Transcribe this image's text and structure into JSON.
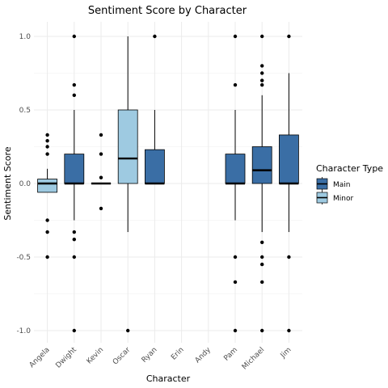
{
  "chart_data": {
    "type": "box",
    "title": "Sentiment Score by Character",
    "xlabel": "Character",
    "ylabel": "Sentiment Score",
    "ylim": [
      -1.1,
      1.1
    ],
    "yticks": [
      "-1.0",
      "-0.5",
      "0.0",
      "0.5",
      "1.0"
    ],
    "ytick_values": [
      -1.0,
      -0.5,
      0.0,
      0.5,
      1.0
    ],
    "categories": [
      "Angela",
      "Dwight",
      "Kevin",
      "Oscar",
      "Ryan",
      "Erin",
      "Andy",
      "Pam",
      "Michael",
      "Jim"
    ],
    "grid": true,
    "legend": {
      "title": "Character Type",
      "position": "right",
      "entries": [
        {
          "label": "Main",
          "color": "#3a6ea5"
        },
        {
          "label": "Minor",
          "color": "#9ecae1"
        }
      ]
    },
    "boxes": [
      {
        "category": "Angela",
        "type": "Minor",
        "q1": -0.06,
        "median": 0.0,
        "q3": 0.03,
        "whisker_low": -0.06,
        "whisker_high": 0.1,
        "outliers": [
          0.33,
          0.29,
          0.25,
          0.2,
          -0.25,
          -0.33,
          -0.5
        ]
      },
      {
        "category": "Dwight",
        "type": "Main",
        "q1": 0.0,
        "median": 0.0,
        "q3": 0.2,
        "whisker_low": -0.25,
        "whisker_high": 0.5,
        "outliers": [
          1.0,
          0.67,
          0.6,
          -0.33,
          -0.38,
          -0.5,
          -1.0
        ]
      },
      {
        "category": "Kevin",
        "type": "Main",
        "q1": 0.0,
        "median": 0.0,
        "q3": 0.0,
        "whisker_low": 0.0,
        "whisker_high": 0.0,
        "outliers": [
          0.33,
          0.2,
          0.04,
          -0.17
        ]
      },
      {
        "category": "Oscar",
        "type": "Minor",
        "q1": 0.0,
        "median": 0.17,
        "q3": 0.5,
        "whisker_low": -0.33,
        "whisker_high": 1.0,
        "outliers": [
          -1.0
        ]
      },
      {
        "category": "Ryan",
        "type": "Main",
        "q1": 0.0,
        "median": 0.0,
        "q3": 0.23,
        "whisker_low": 0.0,
        "whisker_high": 0.5,
        "outliers": [
          1.0
        ]
      },
      {
        "category": "Pam",
        "type": "Main",
        "q1": 0.0,
        "median": 0.0,
        "q3": 0.2,
        "whisker_low": -0.25,
        "whisker_high": 0.5,
        "outliers": [
          1.0,
          0.67,
          -0.5,
          -0.67,
          -1.0
        ]
      },
      {
        "category": "Michael",
        "type": "Main",
        "q1": 0.0,
        "median": 0.09,
        "q3": 0.25,
        "whisker_low": -0.33,
        "whisker_high": 0.6,
        "outliers": [
          1.0,
          0.8,
          0.75,
          0.7,
          0.67,
          -0.4,
          -0.5,
          -0.55,
          -0.67,
          -1.0
        ]
      },
      {
        "category": "Jim",
        "type": "Main",
        "q1": 0.0,
        "median": 0.0,
        "q3": 0.33,
        "whisker_low": -0.33,
        "whisker_high": 0.75,
        "outliers": [
          1.0,
          -0.5,
          -1.0
        ]
      }
    ]
  }
}
